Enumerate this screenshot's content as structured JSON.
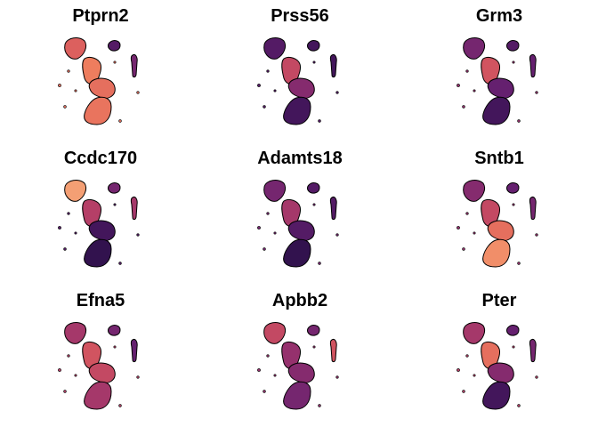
{
  "chart_data": {
    "type": "scatter",
    "layout": "3x3 small multiples (feature plots of a shared 2-D embedding)",
    "axes_visible": false,
    "grid": false,
    "legend": "none",
    "background": "#ffffff",
    "point_outline": "#000000",
    "colormap": [
      "#140c2c",
      "#3a1356",
      "#65206f",
      "#8d2e6e",
      "#b53f67",
      "#d8595e",
      "#ee7d5e",
      "#f6a77a",
      "#fbd3a5"
    ],
    "panels": [
      {
        "title": "Ptprn2",
        "levels": {
          "top_left_blob": 0.65,
          "small_right_blob": 0.2,
          "far_right_strip": 0.3,
          "upper_body": 0.75,
          "middle_body": 0.7,
          "lower_body": 0.72,
          "left_specks": 0.7
        }
      },
      {
        "title": "Prss56",
        "levels": {
          "top_left_blob": 0.2,
          "small_right_blob": 0.15,
          "far_right_strip": 0.15,
          "upper_body": 0.55,
          "middle_body": 0.35,
          "lower_body": 0.15,
          "left_specks": 0.2
        }
      },
      {
        "title": "Grm3",
        "levels": {
          "top_left_blob": 0.3,
          "small_right_blob": 0.2,
          "far_right_strip": 0.25,
          "upper_body": 0.6,
          "middle_body": 0.25,
          "lower_body": 0.15,
          "left_specks": 0.4
        }
      },
      {
        "title": "Ccdc170",
        "levels": {
          "top_left_blob": 0.85,
          "small_right_blob": 0.3,
          "far_right_strip": 0.45,
          "upper_body": 0.5,
          "middle_body": 0.15,
          "lower_body": 0.1,
          "left_specks": 0.2
        }
      },
      {
        "title": "Adamts18",
        "levels": {
          "top_left_blob": 0.3,
          "small_right_blob": 0.2,
          "far_right_strip": 0.2,
          "upper_body": 0.45,
          "middle_body": 0.2,
          "lower_body": 0.1,
          "left_specks": 0.3
        }
      },
      {
        "title": "Sntb1",
        "levels": {
          "top_left_blob": 0.35,
          "small_right_blob": 0.25,
          "far_right_strip": 0.3,
          "upper_body": 0.55,
          "middle_body": 0.7,
          "lower_body": 0.8,
          "left_specks": 0.4
        }
      },
      {
        "title": "Efna5",
        "levels": {
          "top_left_blob": 0.45,
          "small_right_blob": 0.3,
          "far_right_strip": 0.25,
          "upper_body": 0.6,
          "middle_body": 0.55,
          "lower_body": 0.45,
          "left_specks": 0.5
        }
      },
      {
        "title": "Apbb2",
        "levels": {
          "top_left_blob": 0.55,
          "small_right_blob": 0.3,
          "far_right_strip": 0.6,
          "upper_body": 0.4,
          "middle_body": 0.35,
          "lower_body": 0.3,
          "left_specks": 0.4
        }
      },
      {
        "title": "Pter",
        "levels": {
          "top_left_blob": 0.45,
          "small_right_blob": 0.25,
          "far_right_strip": 0.3,
          "upper_body": 0.7,
          "middle_body": 0.35,
          "lower_body": 0.15,
          "left_specks": 0.5
        }
      }
    ]
  }
}
